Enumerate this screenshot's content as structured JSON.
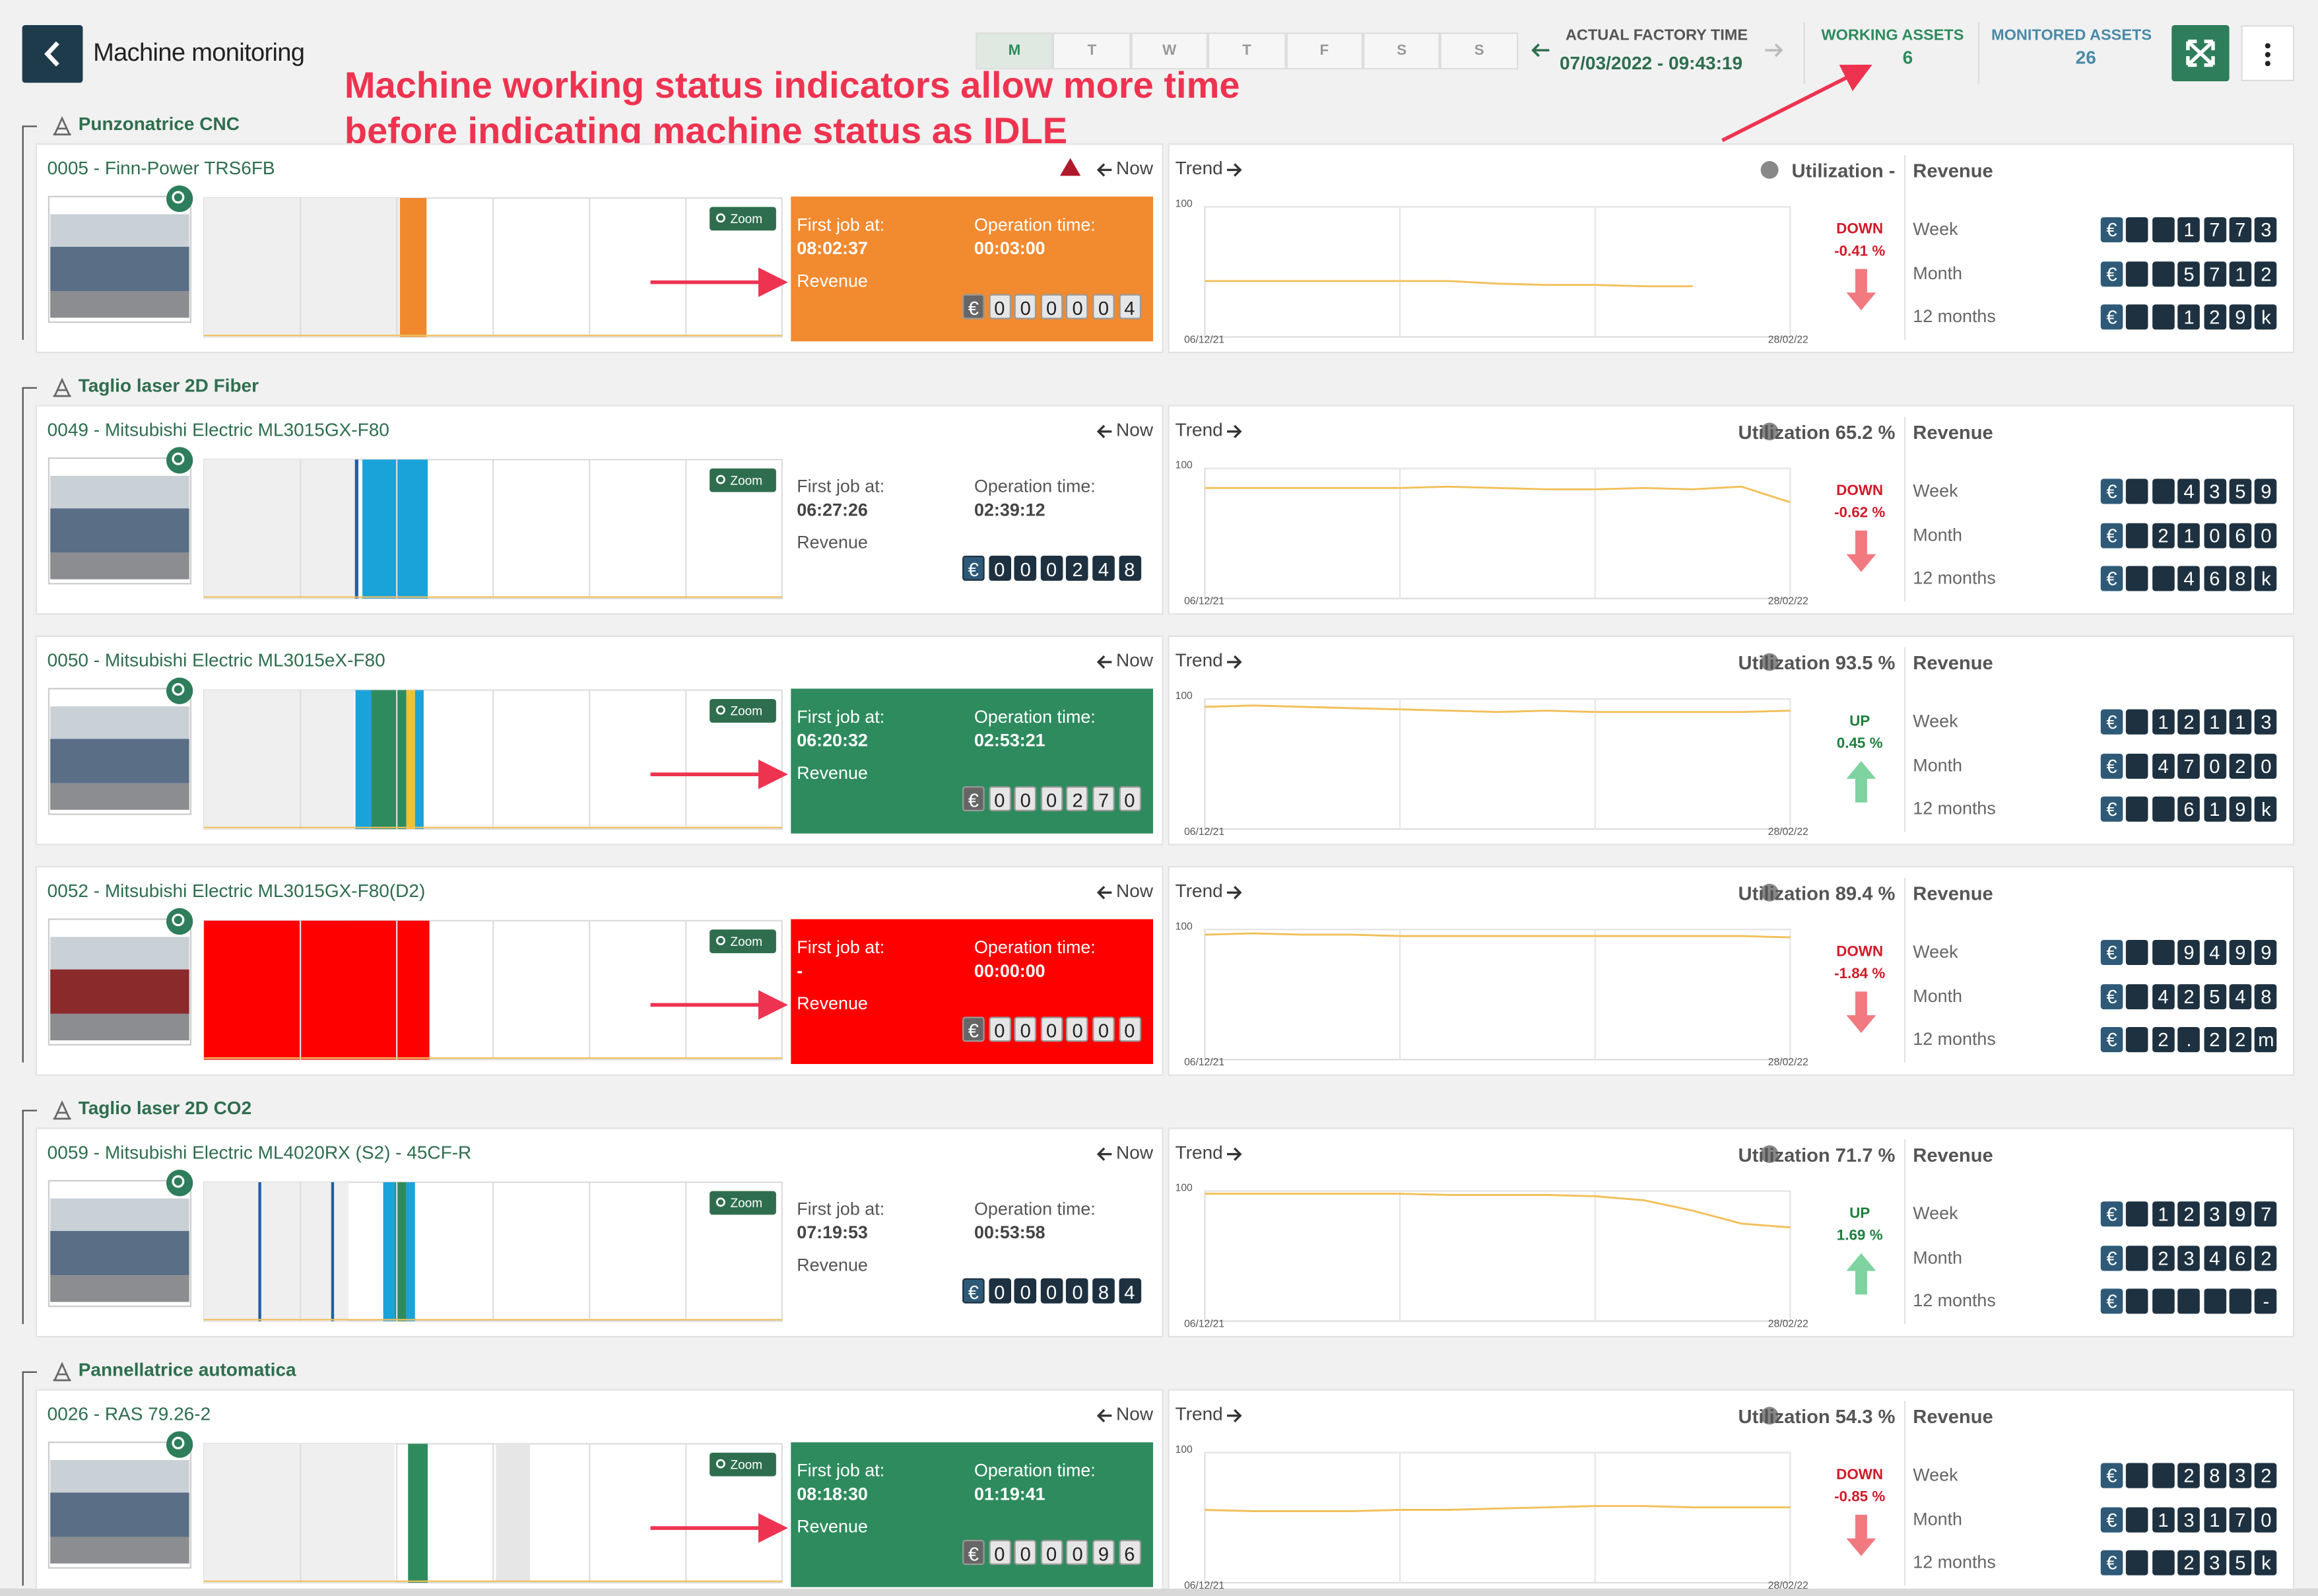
{
  "header": {
    "title": "Machine monitoring",
    "days": [
      "M",
      "T",
      "W",
      "T",
      "F",
      "S",
      "S"
    ],
    "factory_time_label": "ACTUAL FACTORY TIME",
    "factory_time": "07/03/2022 - 09:43:19",
    "working_label": "WORKING ASSETS",
    "working_value": "6",
    "monitored_label": "MONITORED ASSETS",
    "monitored_value": "26"
  },
  "annotation": {
    "lines": [
      "Machine working status indicators allow more time",
      "before indicating machine status as IDLE"
    ]
  },
  "labels": {
    "now": "Now",
    "zoom": "Zoom",
    "first_job": "First job at:",
    "operation_time": "Operation time:",
    "revenue": "Revenue",
    "trend": "Trend",
    "week": "Week",
    "month": "Month",
    "year": "12 months"
  },
  "trend_axis": {
    "ylim": [
      0,
      100
    ],
    "yticks": [
      100
    ],
    "x_labels": [
      "06/12/21",
      "28/02/22"
    ]
  },
  "groups": [
    {
      "name": "Punzonatrice CNC",
      "machines": [
        {
          "name": "0005 - Finn-Power TRS6FB",
          "warning": true,
          "status_color": "#f28a30",
          "first_job": "08:02:37",
          "operation_time": "00:03:00",
          "counter": [
            "€",
            "0",
            "0",
            "0",
            "0",
            "0",
            "4"
          ],
          "activity": [
            {
              "from": 0,
              "to": 34,
              "color": "#efefef"
            },
            {
              "from": 34,
              "to": 34.3,
              "color": "#2a7f7a"
            },
            {
              "from": 33.9,
              "to": 38.5,
              "color": "#f0892e"
            }
          ],
          "trend": [
            43,
            43,
            43,
            43,
            43,
            43,
            41,
            40,
            40,
            39,
            39,
            null,
            null
          ],
          "utilization": "Utilization -",
          "direction": "DOWN",
          "change": "-0.41 %",
          "week": [
            "€",
            null,
            null,
            "1",
            "7",
            "7",
            "3"
          ],
          "month": [
            "€",
            null,
            null,
            "5",
            "7",
            "1",
            "2"
          ],
          "year": [
            "€",
            null,
            null,
            "1",
            "2",
            "9",
            "k"
          ]
        }
      ]
    },
    {
      "name": "Taglio laser 2D Fiber",
      "machines": [
        {
          "name": "0049 - Mitsubishi Electric ML3015GX-F80",
          "warning": false,
          "status_color": null,
          "first_job": "06:27:26",
          "operation_time": "02:39:12",
          "counter": [
            "€",
            "0",
            "0",
            "0",
            "2",
            "4",
            "8"
          ],
          "activity": [
            {
              "from": 0,
              "to": 26,
              "color": "#efefef"
            },
            {
              "from": 26.1,
              "to": 26.7,
              "color": "#1f5fa8"
            },
            {
              "from": 27.4,
              "to": 38.7,
              "color": "#1aa3d9"
            }
          ],
          "trend": [
            85,
            85,
            85,
            85,
            85,
            86,
            85,
            84,
            84,
            85,
            84,
            86,
            74
          ],
          "utilization": "Utilization 65.2 %",
          "direction": "DOWN",
          "change": "-0.62 %",
          "week": [
            "€",
            null,
            null,
            "4",
            "3",
            "5",
            "9"
          ],
          "month": [
            "€",
            null,
            "2",
            "1",
            "0",
            "6",
            "0"
          ],
          "year": [
            "€",
            null,
            null,
            "4",
            "6",
            "8",
            "k"
          ]
        },
        {
          "name": "0050 - Mitsubishi Electric ML3015eX-F80",
          "warning": false,
          "status_color": "#2e8b5e",
          "first_job": "06:20:32",
          "operation_time": "02:53:21",
          "counter": [
            "€",
            "0",
            "0",
            "0",
            "2",
            "7",
            "0"
          ],
          "activity": [
            {
              "from": 0,
              "to": 26,
              "color": "#efefef"
            },
            {
              "from": 26.2,
              "to": 28.9,
              "color": "#1aa3d9"
            },
            {
              "from": 28.9,
              "to": 35,
              "color": "#2e8b5e"
            },
            {
              "from": 35,
              "to": 36.5,
              "color": "#f2c12e"
            },
            {
              "from": 36.5,
              "to": 38,
              "color": "#1aa3d9"
            }
          ],
          "trend": [
            94,
            95,
            94,
            93,
            92,
            91,
            90,
            91,
            90,
            90,
            90,
            90,
            91
          ],
          "utilization": "Utilization 93.5 %",
          "direction": "UP",
          "change": "0.45 %",
          "week": [
            "€",
            null,
            "1",
            "2",
            "1",
            "1",
            "3"
          ],
          "month": [
            "€",
            null,
            "4",
            "7",
            "0",
            "2",
            "0"
          ],
          "year": [
            "€",
            null,
            null,
            "6",
            "1",
            "9",
            "k"
          ]
        },
        {
          "name": "0052 - Mitsubishi Electric ML3015GX-F80(D2)",
          "warning": false,
          "status_color": "#fe0000",
          "first_job": "-",
          "operation_time": "00:00:00",
          "counter": [
            "€",
            "0",
            "0",
            "0",
            "0",
            "0",
            "0"
          ],
          "activity": [
            {
              "from": 0,
              "to": 25,
              "color": "#efefef"
            },
            {
              "from": 0,
              "to": 39,
              "color": "#fe0000"
            }
          ],
          "trend": [
            96,
            97,
            96,
            96,
            95,
            95,
            95,
            95,
            95,
            95,
            95,
            95,
            94
          ],
          "utilization": "Utilization 89.4 %",
          "direction": "DOWN",
          "change": "-1.84 %",
          "week": [
            "€",
            null,
            null,
            "9",
            "4",
            "9",
            "9"
          ],
          "month": [
            "€",
            null,
            "4",
            "2",
            "5",
            "4",
            "8"
          ],
          "year": [
            "€",
            null,
            "2",
            ".",
            "2",
            "2",
            "m"
          ]
        }
      ]
    },
    {
      "name": "Taglio laser 2D CO2",
      "machines": [
        {
          "name": "0059 - Mitsubishi Electric ML4020RX (S2) - 45CF-R",
          "warning": false,
          "status_color": null,
          "first_job": "07:19:53",
          "operation_time": "00:53:58",
          "counter": [
            "€",
            "0",
            "0",
            "0",
            "0",
            "8",
            "4"
          ],
          "activity": [
            {
              "from": 0,
              "to": 25,
              "color": "#efefef"
            },
            {
              "from": 9.4,
              "to": 9.9,
              "color": "#1f5fa8"
            },
            {
              "from": 22,
              "to": 22.5,
              "color": "#1f5fa8"
            },
            {
              "from": 31,
              "to": 33,
              "color": "#1aa3d9"
            },
            {
              "from": 33,
              "to": 35,
              "color": "#2e8b5e"
            },
            {
              "from": 35,
              "to": 36.5,
              "color": "#1aa3d9"
            }
          ],
          "trend": [
            98,
            98,
            98,
            98,
            98,
            97,
            97,
            97,
            96,
            93,
            85,
            75,
            72
          ],
          "utilization": "Utilization 71.7 %",
          "direction": "UP",
          "change": "1.69 %",
          "week": [
            "€",
            null,
            "1",
            "2",
            "3",
            "9",
            "7"
          ],
          "month": [
            "€",
            null,
            "2",
            "3",
            "4",
            "6",
            "2"
          ],
          "year": [
            "€",
            null,
            null,
            null,
            null,
            null,
            "-"
          ]
        }
      ]
    },
    {
      "name": "Pannellatrice automatica",
      "machines": [
        {
          "name": "0026 - RAS 79.26-2",
          "warning": false,
          "status_color": "#2e8b5e",
          "first_job": "08:18:30",
          "operation_time": "01:19:41",
          "counter": [
            "€",
            "0",
            "0",
            "0",
            "0",
            "9",
            "6"
          ],
          "activity": [
            {
              "from": 0,
              "to": 33,
              "color": "#efefef"
            },
            {
              "from": 35.3,
              "to": 38.7,
              "color": "#2e8b5e"
            },
            {
              "from": 50.5,
              "to": 56.4,
              "color": "#e6e6e6"
            }
          ],
          "trend": [
            56,
            55,
            55,
            55,
            56,
            56,
            57,
            58,
            59,
            59,
            58,
            58,
            58
          ],
          "utilization": "Utilization 54.3 %",
          "direction": "DOWN",
          "change": "-0.85 %",
          "week": [
            "€",
            null,
            null,
            "2",
            "8",
            "3",
            "2"
          ],
          "month": [
            "€",
            null,
            "1",
            "3",
            "1",
            "7",
            "0"
          ],
          "year": [
            "€",
            null,
            null,
            "2",
            "3",
            "5",
            "k"
          ]
        }
      ]
    }
  ]
}
